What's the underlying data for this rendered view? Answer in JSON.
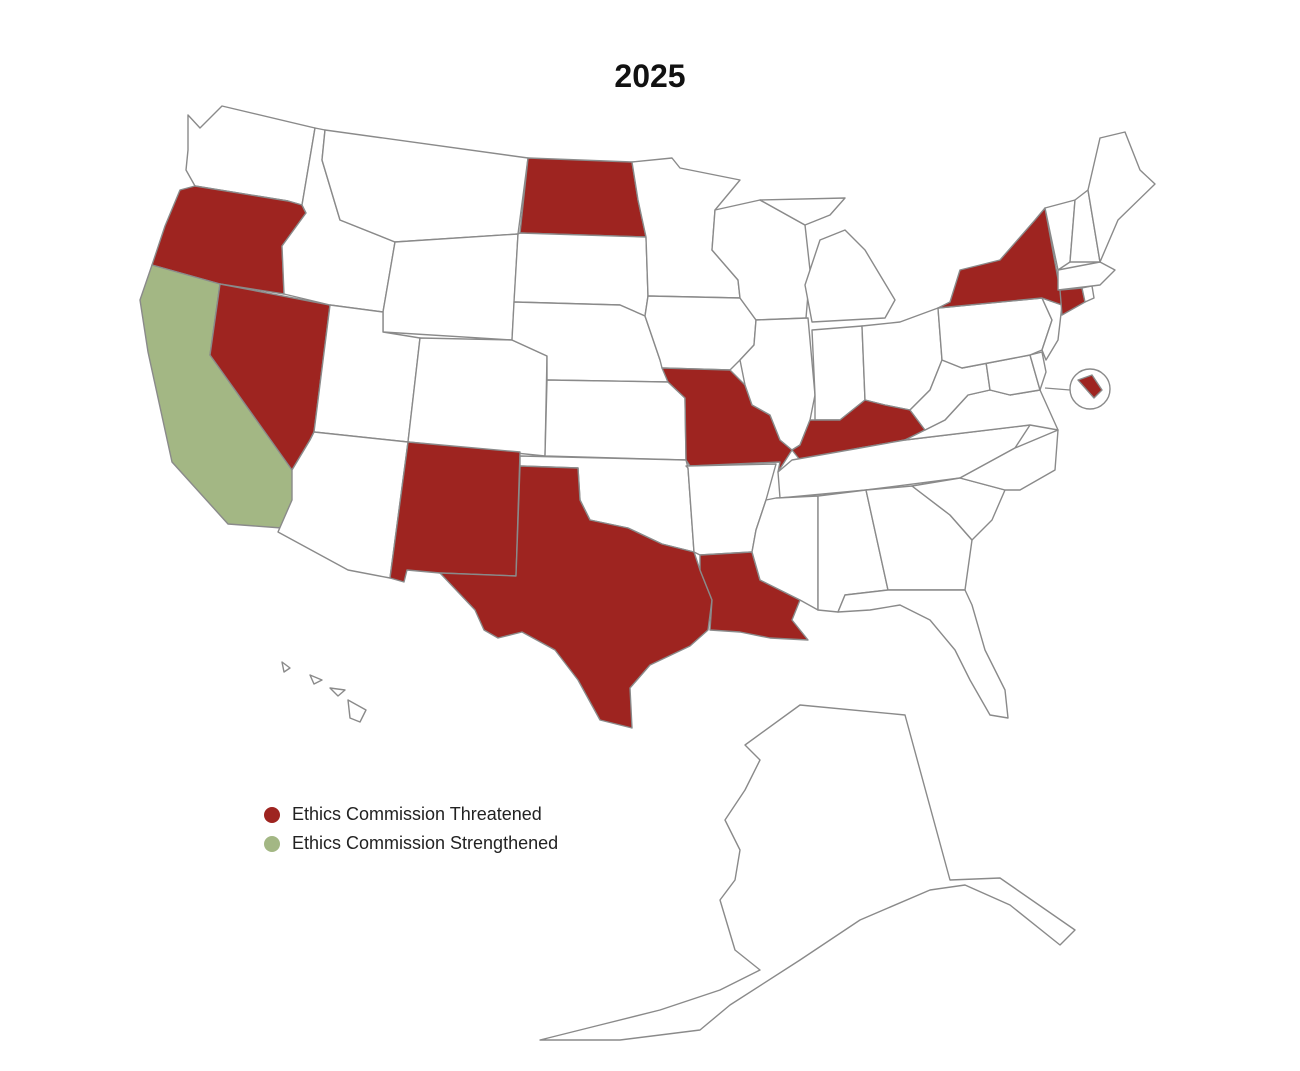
{
  "title": "2025",
  "colors": {
    "threatened": "#9e2420",
    "strengthened": "#a3b784",
    "none": "#ffffff",
    "border": "#8a8a8a"
  },
  "legend": [
    {
      "label": "Ethics Commission Threatened",
      "status": "threatened"
    },
    {
      "label": "Ethics Commission Strengthened",
      "status": "strengthened"
    }
  ],
  "states": [
    {
      "id": "WA",
      "status": "none"
    },
    {
      "id": "OR",
      "status": "threatened"
    },
    {
      "id": "CA",
      "status": "strengthened"
    },
    {
      "id": "NV",
      "status": "threatened"
    },
    {
      "id": "ID",
      "status": "none"
    },
    {
      "id": "MT",
      "status": "none"
    },
    {
      "id": "WY",
      "status": "none"
    },
    {
      "id": "UT",
      "status": "none"
    },
    {
      "id": "AZ",
      "status": "none"
    },
    {
      "id": "CO",
      "status": "none"
    },
    {
      "id": "NM",
      "status": "threatened"
    },
    {
      "id": "ND",
      "status": "threatened"
    },
    {
      "id": "SD",
      "status": "none"
    },
    {
      "id": "NE",
      "status": "none"
    },
    {
      "id": "KS",
      "status": "none"
    },
    {
      "id": "OK",
      "status": "none"
    },
    {
      "id": "TX",
      "status": "threatened"
    },
    {
      "id": "MN",
      "status": "none"
    },
    {
      "id": "IA",
      "status": "none"
    },
    {
      "id": "MO",
      "status": "threatened"
    },
    {
      "id": "AR",
      "status": "none"
    },
    {
      "id": "LA",
      "status": "threatened"
    },
    {
      "id": "WI",
      "status": "none"
    },
    {
      "id": "IL",
      "status": "none"
    },
    {
      "id": "MI",
      "status": "none"
    },
    {
      "id": "IN",
      "status": "none"
    },
    {
      "id": "OH",
      "status": "none"
    },
    {
      "id": "KY",
      "status": "threatened"
    },
    {
      "id": "TN",
      "status": "none"
    },
    {
      "id": "MS",
      "status": "none"
    },
    {
      "id": "AL",
      "status": "none"
    },
    {
      "id": "GA",
      "status": "none"
    },
    {
      "id": "FL",
      "status": "none"
    },
    {
      "id": "SC",
      "status": "none"
    },
    {
      "id": "NC",
      "status": "none"
    },
    {
      "id": "VA",
      "status": "none"
    },
    {
      "id": "WV",
      "status": "none"
    },
    {
      "id": "MD",
      "status": "none"
    },
    {
      "id": "DE",
      "status": "none"
    },
    {
      "id": "PA",
      "status": "none"
    },
    {
      "id": "NJ",
      "status": "none"
    },
    {
      "id": "NY",
      "status": "threatened"
    },
    {
      "id": "CT",
      "status": "threatened"
    },
    {
      "id": "RI",
      "status": "none"
    },
    {
      "id": "MA",
      "status": "none"
    },
    {
      "id": "VT",
      "status": "none"
    },
    {
      "id": "NH",
      "status": "none"
    },
    {
      "id": "ME",
      "status": "none"
    },
    {
      "id": "DC",
      "status": "threatened"
    },
    {
      "id": "AK",
      "status": "none"
    },
    {
      "id": "HI",
      "status": "none"
    }
  ]
}
